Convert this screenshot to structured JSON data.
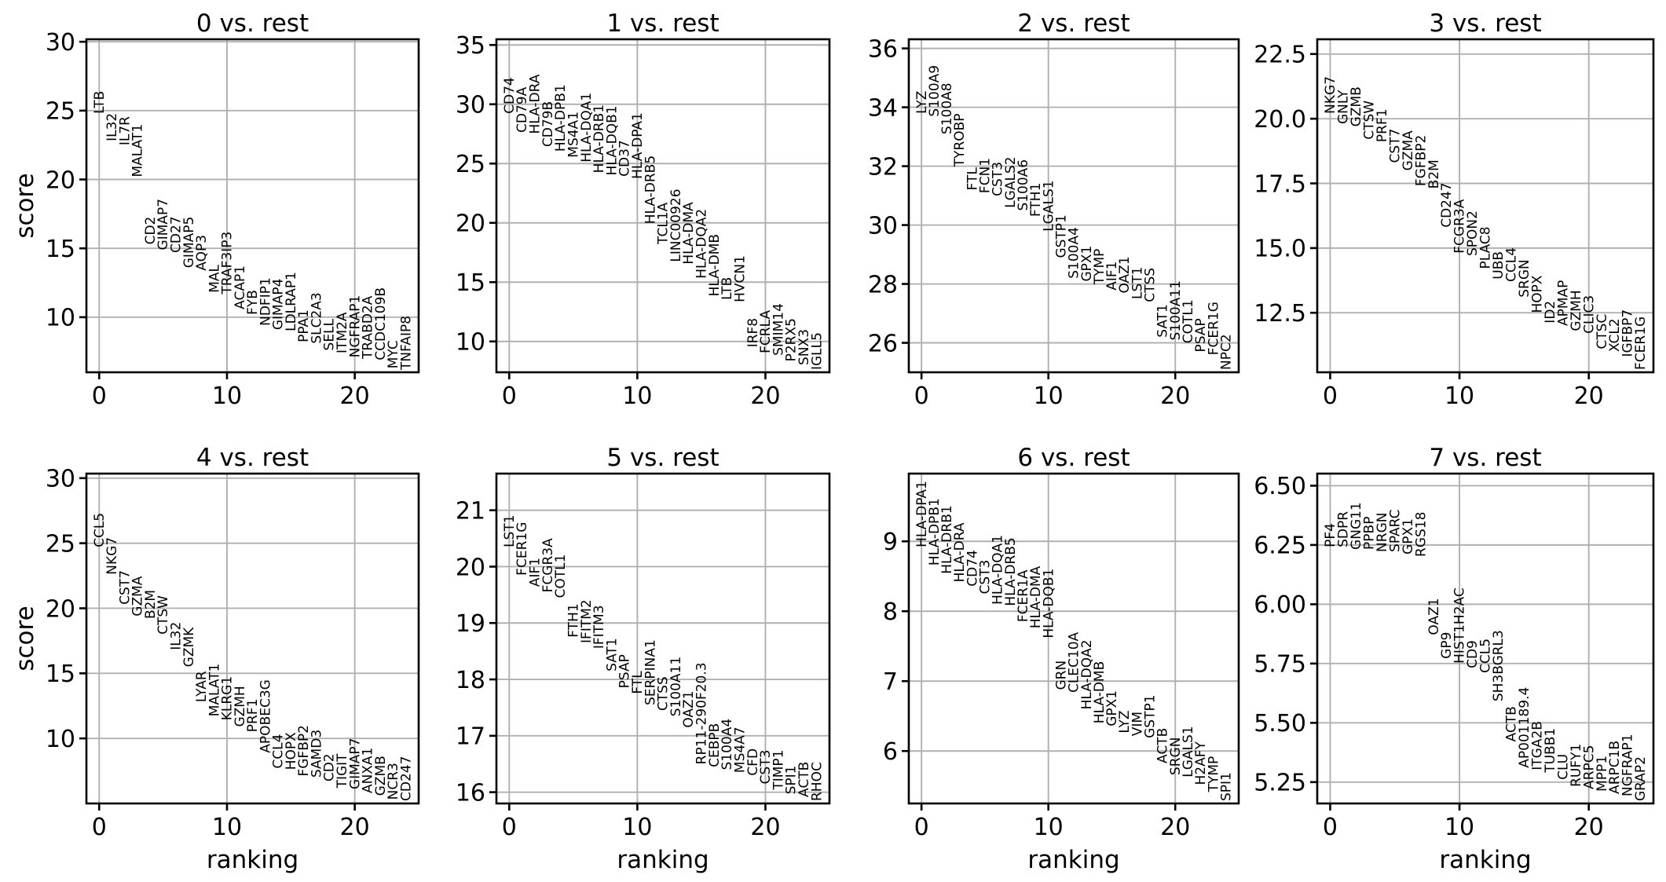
{
  "figure": {
    "ylabel": "score",
    "xlabel": "ranking",
    "x_ticks": {
      "values": [
        0,
        10,
        20
      ],
      "labels": [
        "0",
        "10",
        "20"
      ]
    },
    "colors": {
      "background": "#ffffff",
      "text": "#000000",
      "grid": "#b0b0b0",
      "spine": "#000000"
    }
  },
  "chart_data": [
    {
      "type": "scatter",
      "title": "0 vs. rest",
      "xlabel": "ranking",
      "ylabel": "score",
      "x_is_ranking": true,
      "y_ticks": {
        "values": [
          10,
          15,
          20,
          25,
          30
        ],
        "labels": [
          "10",
          "15",
          "20",
          "25",
          "30"
        ]
      },
      "genes": [
        "LTB",
        "IL32",
        "IL7R",
        "MALAT1",
        "CD2",
        "GIMAP7",
        "CD27",
        "GIMAP5",
        "AQP3",
        "MAL",
        "TRAF3IP3",
        "ACAP1",
        "FYB",
        "NDFIP1",
        "GIMAP4",
        "LDLRAP1",
        "PPA1",
        "SLC2A3",
        "SELL",
        "ITM2A",
        "NGFRAP1",
        "TRABD2A",
        "CCDC109B",
        "MYC",
        "TNFAIP8"
      ],
      "scores": [
        24.6,
        22.6,
        22.3,
        20.0,
        15.1,
        14.7,
        14.5,
        13.4,
        13.2,
        11.6,
        11.5,
        10.4,
        10.0,
        9.2,
        8.9,
        8.8,
        8.0,
        7.9,
        7.4,
        7.2,
        6.9,
        6.8,
        6.7,
        6.1,
        6.0
      ]
    },
    {
      "type": "scatter",
      "title": "1 vs. rest",
      "xlabel": "ranking",
      "ylabel": "score",
      "x_is_ranking": true,
      "y_ticks": {
        "values": [
          10,
          15,
          20,
          25,
          30,
          35
        ],
        "labels": [
          "10",
          "15",
          "20",
          "25",
          "30",
          "35"
        ]
      },
      "genes": [
        "CD74",
        "CD79A",
        "HLA-DRA",
        "CD79B",
        "HLA-DPB1",
        "MS4A1",
        "HLA-DQA1",
        "HLA-DRB1",
        "HLA-DQB1",
        "CD37",
        "HLA-DPA1",
        "HLA-DRB5",
        "TCL1A",
        "LINC00926",
        "HLA-DMA",
        "HLA-DQA2",
        "HLA-DMB",
        "LTB",
        "HVCN1",
        "IRF8",
        "FCRLA",
        "SMIM14",
        "P2RX5",
        "SNX3",
        "IGLL5"
      ],
      "scores": [
        29.0,
        27.4,
        27.3,
        26.2,
        25.8,
        25.3,
        24.9,
        24.0,
        23.8,
        23.7,
        23.5,
        19.7,
        18.0,
        16.5,
        16.3,
        15.1,
        13.6,
        13.3,
        13.1,
        9.3,
        8.8,
        8.6,
        8.1,
        7.8,
        7.4
      ]
    },
    {
      "type": "scatter",
      "title": "2 vs. rest",
      "xlabel": "ranking",
      "ylabel": "score",
      "x_is_ranking": true,
      "y_ticks": {
        "values": [
          26,
          28,
          30,
          32,
          34,
          36
        ],
        "labels": [
          "26",
          "28",
          "30",
          "32",
          "34",
          "36"
        ]
      },
      "genes": [
        "LYZ",
        "S100A9",
        "S100A8",
        "TYROBP",
        "FTL",
        "FCN1",
        "CST3",
        "LGALS2",
        "S100A6",
        "FTH1",
        "LGALS1",
        "GSTP1",
        "S100A4",
        "GPX1",
        "TYMP",
        "AIF1",
        "OAZ1",
        "LST1",
        "CTSS",
        "SAT1",
        "S100A11",
        "COTL1",
        "PSAP",
        "FCER1G",
        "NPC2"
      ],
      "scores": [
        33.7,
        33.6,
        33.0,
        31.9,
        31.1,
        31.0,
        30.9,
        30.5,
        30.4,
        30.2,
        29.7,
        28.8,
        28.1,
        28.0,
        27.9,
        27.7,
        27.6,
        27.4,
        27.3,
        26.1,
        26.0,
        25.9,
        25.6,
        25.5,
        25.0
      ]
    },
    {
      "type": "scatter",
      "title": "3 vs. rest",
      "xlabel": "ranking",
      "ylabel": "score",
      "x_is_ranking": true,
      "y_ticks": {
        "values": [
          12.5,
          15.0,
          17.5,
          20.0,
          22.5
        ],
        "labels": [
          "12.5",
          "15.0",
          "17.5",
          "20.0",
          "22.5"
        ]
      },
      "genes": [
        "NKG7",
        "GNLY",
        "GZMB",
        "CTSW",
        "PRF1",
        "CST7",
        "GZMA",
        "FGFBP2",
        "B2M",
        "CD247",
        "FCGR3A",
        "SPON2",
        "PLAC8",
        "UBB",
        "CCL4",
        "SRGN",
        "HOPX",
        "ID2",
        "APMAP",
        "GZMH",
        "CLIC3",
        "CTSC",
        "XCL2",
        "IGFBP7",
        "FCER1G"
      ],
      "scores": [
        20.1,
        19.7,
        19.6,
        19.1,
        19.0,
        18.2,
        17.9,
        17.3,
        17.2,
        15.7,
        14.7,
        14.6,
        14.1,
        13.7,
        13.6,
        13.0,
        12.4,
        12.0,
        11.9,
        11.7,
        11.6,
        11.0,
        10.9,
        10.7,
        10.2
      ]
    },
    {
      "type": "scatter",
      "title": "4 vs. rest",
      "xlabel": "ranking",
      "ylabel": "score",
      "x_is_ranking": true,
      "y_ticks": {
        "values": [
          10,
          15,
          20,
          25,
          30
        ],
        "labels": [
          "10",
          "15",
          "20",
          "25",
          "30"
        ]
      },
      "genes": [
        "CCL5",
        "NKG7",
        "CST7",
        "GZMA",
        "B2M",
        "CTSW",
        "IL32",
        "GZMK",
        "LYAR",
        "MALAT1",
        "KLRG1",
        "GZMH",
        "PRF1",
        "APOBEC3G",
        "CCL4",
        "HOPX",
        "FGFBP2",
        "SAMD3",
        "CD2",
        "TIGIT",
        "GIMAP7",
        "ANXA1",
        "GZMB",
        "NCR3",
        "CD247"
      ],
      "scores": [
        24.5,
        22.4,
        20.1,
        19.2,
        19.0,
        17.8,
        16.6,
        15.3,
        12.6,
        11.5,
        11.2,
        10.7,
        10.3,
        8.7,
        7.5,
        7.4,
        6.9,
        6.8,
        6.5,
        6.0,
        5.9,
        5.6,
        5.4,
        5.1,
        5.0
      ]
    },
    {
      "type": "scatter",
      "title": "5 vs. rest",
      "xlabel": "ranking",
      "ylabel": "score",
      "x_is_ranking": true,
      "y_ticks": {
        "values": [
          16,
          17,
          18,
          19,
          20,
          21
        ],
        "labels": [
          "16",
          "17",
          "18",
          "19",
          "20",
          "21"
        ]
      },
      "genes": [
        "LST1",
        "FCER1G",
        "AIF1",
        "FCGR3A",
        "COTL1",
        "FTH1",
        "IFITM2",
        "IFITM3",
        "SAT1",
        "PSAP",
        "FTL",
        "SERPINA1",
        "CTSS",
        "S100A11",
        "OAZ1",
        "RP11-290F20.3",
        "CEBPB",
        "S100A4",
        "MS4A7",
        "CFD",
        "CST3",
        "TIMP1",
        "SPI1",
        "ACTB",
        "RHOC"
      ],
      "scores": [
        20.3,
        19.8,
        19.6,
        19.5,
        19.4,
        18.7,
        18.6,
        18.5,
        18.1,
        17.8,
        17.7,
        17.5,
        17.4,
        17.3,
        17.1,
        16.45,
        16.4,
        16.35,
        16.3,
        16.25,
        16.1,
        16.0,
        15.92,
        15.87,
        15.8
      ]
    },
    {
      "type": "scatter",
      "title": "6 vs. rest",
      "xlabel": "ranking",
      "ylabel": "score",
      "x_is_ranking": true,
      "y_ticks": {
        "values": [
          6,
          7,
          8,
          9
        ],
        "labels": [
          "6",
          "7",
          "8",
          "9"
        ]
      },
      "genes": [
        "HLA-DPA1",
        "HLA-DPB1",
        "HLA-DRB1",
        "HLA-DRA",
        "CD74",
        "CST3",
        "HLA-DQA1",
        "HLA-DRB5",
        "FCER1A",
        "HLA-DMA",
        "HLA-DQB1",
        "GRN",
        "CLEC10A",
        "HLA-DQA2",
        "HLA-DMB",
        "GPX1",
        "LYZ",
        "VIM",
        "GSTP1",
        "ACTB",
        "SRGN",
        "LGALS1",
        "H2AFY",
        "TYMP",
        "SPI1"
      ],
      "scores": [
        8.88,
        8.62,
        8.5,
        8.38,
        8.32,
        8.21,
        8.06,
        8.04,
        7.81,
        7.72,
        7.58,
        6.84,
        6.8,
        6.56,
        6.36,
        6.32,
        6.22,
        6.18,
        6.15,
        5.79,
        5.62,
        5.59,
        5.48,
        5.38,
        5.25
      ]
    },
    {
      "type": "scatter",
      "title": "7 vs. rest",
      "xlabel": "ranking",
      "ylabel": "score",
      "x_is_ranking": true,
      "y_ticks": {
        "values": [
          5.25,
          5.5,
          5.75,
          6.0,
          6.25,
          6.5
        ],
        "labels": [
          "5.25",
          "5.50",
          "5.75",
          "6.00",
          "6.25",
          "6.50"
        ]
      },
      "genes": [
        "PF4",
        "SDPR",
        "GNG11",
        "PPBP",
        "NRGN",
        "SPARC",
        "GPX1",
        "RGS18",
        "OAZ1",
        "GP9",
        "HIST1H2AC",
        "CD9",
        "CCL5",
        "SH3BGRL3",
        "ACTB",
        "AP001189.4",
        "ITGA2B",
        "TUBB1",
        "CLU",
        "RUFY1",
        "ARPC5",
        "MPP1",
        "ARPC1B",
        "NGFRAP1",
        "GRAP2"
      ],
      "scores": [
        6.23,
        6.23,
        6.22,
        6.22,
        6.21,
        6.21,
        6.2,
        6.19,
        5.86,
        5.76,
        5.74,
        5.72,
        5.7,
        5.58,
        5.41,
        5.3,
        5.29,
        5.28,
        5.25,
        5.22,
        5.21,
        5.2,
        5.19,
        5.18,
        5.16
      ]
    }
  ]
}
